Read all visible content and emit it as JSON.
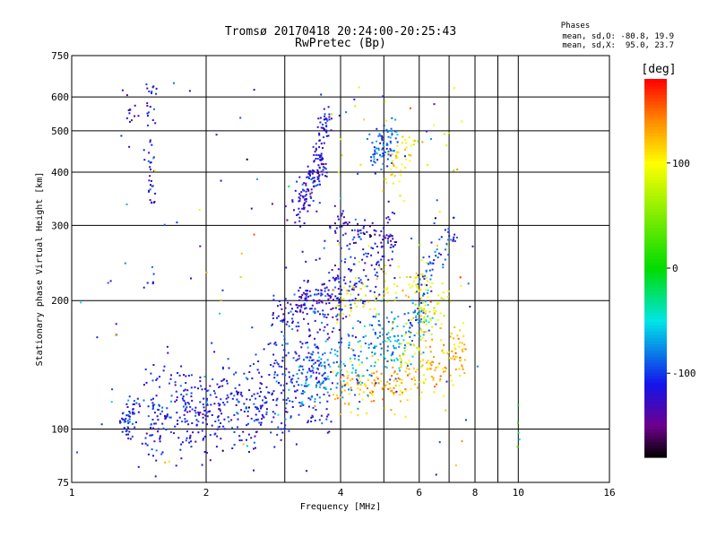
{
  "chart_data": {
    "type": "scatter",
    "title": "Tromsø 20170418 20:24:00-20:25:43",
    "subtitle": "RwPretec (Bp)",
    "xlabel": "Frequency [MHz]",
    "ylabel": "Stationary phase Virtual Height [km]",
    "x_scale": "log",
    "y_scale": "log",
    "xlim": [
      1,
      16
    ],
    "ylim": [
      75,
      750
    ],
    "grid": true,
    "x_ticks": [
      1,
      2,
      4,
      6,
      8,
      10,
      16
    ],
    "x_gridlines": [
      1,
      2,
      3,
      4,
      5,
      6,
      7,
      8,
      9,
      10,
      16
    ],
    "y_ticks": [
      75,
      100,
      200,
      300,
      400,
      500,
      600,
      750
    ],
    "y_gridlines": [
      75,
      100,
      200,
      300,
      400,
      500,
      600,
      750
    ],
    "stats": {
      "heading": "Phases",
      "line1": "mean, sd,O: -80.8, 19.9",
      "line2": "mean, sd,X:  95.0, 23.7"
    },
    "colorbar": {
      "label": "[deg]",
      "min": -180,
      "max": 180,
      "ticks": [
        100,
        0,
        -100
      ],
      "colormap": "rainbow",
      "placement": "right"
    },
    "traces": [
      {
        "name": "",
        "kind": "band",
        "x": [
          1.45,
          1.6,
          1.8,
          2.0,
          2.3,
          2.6,
          3.0,
          3.4,
          3.8
        ],
        "y": [
          107,
          108,
          110,
          112,
          115,
          118,
          122,
          128,
          135
        ],
        "phase": -110,
        "spread": 0.13,
        "count": 560
      },
      {
        "name": "",
        "kind": "band",
        "x": [
          1.3,
          1.4
        ],
        "y": [
          104,
          112
        ],
        "phase": -105,
        "spread": 0.05,
        "count": 50
      },
      {
        "name": "",
        "kind": "band",
        "x": [
          3.8,
          4.3,
          4.8,
          5.3,
          5.8,
          6.3,
          6.8,
          7.2,
          7.5
        ],
        "y": [
          123,
          125,
          127,
          129,
          132,
          136,
          141,
          148,
          160
        ],
        "phase": 125,
        "spread": 0.07,
        "count": 230
      },
      {
        "name": "",
        "kind": "band",
        "x": [
          3.2,
          3.6,
          4.0,
          4.4,
          4.8,
          5.2,
          5.6,
          6.0,
          6.4
        ],
        "y": [
          130,
          134,
          140,
          146,
          152,
          158,
          168,
          180,
          200
        ],
        "phase": -75,
        "spread": 0.1,
        "count": 280
      },
      {
        "name": "",
        "kind": "band",
        "x": [
          2.8,
          3.1,
          3.3,
          3.5,
          3.8,
          4.1
        ],
        "y": [
          185,
          190,
          195,
          200,
          205,
          210
        ],
        "phase": -118,
        "spread": 0.05,
        "count": 100
      },
      {
        "name": "",
        "kind": "band",
        "x": [
          3.9,
          4.4,
          4.9,
          5.4,
          5.9,
          6.4
        ],
        "y": [
          200,
          203,
          207,
          212,
          218,
          226
        ],
        "phase": 105,
        "spread": 0.06,
        "count": 90
      },
      {
        "name": "",
        "kind": "band",
        "x": [
          2.8,
          3.2,
          3.6,
          4.0,
          4.4,
          4.8,
          5.2
        ],
        "y": [
          160,
          175,
          190,
          210,
          230,
          250,
          270
        ],
        "phase": -110,
        "spread": 0.14,
        "count": 230
      },
      {
        "name": "",
        "kind": "band",
        "x": [
          3.7,
          4.1,
          4.5,
          4.9,
          5.3
        ],
        "y": [
          295,
          295,
          290,
          285,
          280
        ],
        "phase": -125,
        "spread": 0.04,
        "count": 70
      },
      {
        "name": "",
        "kind": "band",
        "x": [
          3.2,
          3.35,
          3.5,
          3.65
        ],
        "y": [
          330,
          360,
          390,
          420
        ],
        "phase": -122,
        "spread": 0.06,
        "count": 130
      },
      {
        "name": "",
        "kind": "band",
        "x": [
          3.55,
          3.65,
          3.75
        ],
        "y": [
          440,
          500,
          560
        ],
        "phase": -118,
        "spread": 0.05,
        "count": 50
      },
      {
        "name": "",
        "kind": "band",
        "x": [
          4.7,
          4.9,
          5.1,
          5.3
        ],
        "y": [
          430,
          450,
          470,
          480
        ],
        "phase": -88,
        "spread": 0.05,
        "count": 80
      },
      {
        "name": "",
        "kind": "band",
        "x": [
          5.0,
          5.4,
          5.8
        ],
        "y": [
          390,
          430,
          470
        ],
        "phase": 110,
        "spread": 0.05,
        "count": 40
      },
      {
        "name": "",
        "kind": "band",
        "x": [
          6.1,
          6.4,
          6.8,
          7.2
        ],
        "y": [
          230,
          250,
          270,
          300
        ],
        "phase": -100,
        "spread": 0.07,
        "count": 50
      },
      {
        "name": "",
        "kind": "band",
        "x": [
          5.5,
          6.0,
          6.5,
          7.0
        ],
        "y": [
          150,
          170,
          190,
          210
        ],
        "phase": 90,
        "spread": 0.08,
        "count": 70
      },
      {
        "name": "",
        "kind": "band",
        "x": [
          1.5,
          1.5
        ],
        "y": [
          330,
          640
        ],
        "phase": -115,
        "spread": 0.01,
        "count": 45
      },
      {
        "name": "",
        "kind": "band",
        "x": [
          1.35,
          1.35
        ],
        "y": [
          450,
          640
        ],
        "phase": -120,
        "spread": 0.01,
        "count": 12
      },
      {
        "name": "",
        "kind": "band",
        "x": [
          1.5,
          1.5
        ],
        "y": [
          205,
          240
        ],
        "phase": -110,
        "spread": 0.01,
        "count": 6
      },
      {
        "name": "",
        "kind": "scatter",
        "xlim": [
          1.0,
          8.5
        ],
        "ylim": [
          78,
          650
        ],
        "phase": -105,
        "count": 90
      },
      {
        "name": "",
        "kind": "scatter",
        "xlim": [
          3.8,
          7.5
        ],
        "ylim": [
          110,
          650
        ],
        "phase": 100,
        "count": 60
      },
      {
        "name": "",
        "kind": "scatter",
        "xlim": [
          1.0,
          7.5
        ],
        "ylim": [
          78,
          500
        ],
        "phase": 120,
        "count": 20
      },
      {
        "name": "",
        "kind": "scatter",
        "xlim": [
          9.9,
          10.1
        ],
        "ylim": [
          90,
          160
        ],
        "phase": -20,
        "count": 5
      }
    ]
  }
}
